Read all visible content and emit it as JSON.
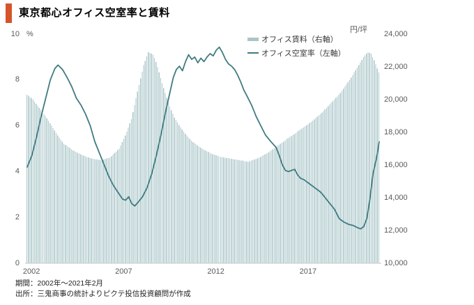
{
  "header": {
    "title": "東京都心オフィス空室率と賃料"
  },
  "footer": {
    "period": "期間：2002年～2021年2月",
    "source": "出所：三鬼商事の統計よりピクテ投信投資顧問が作成"
  },
  "colors": {
    "accent": "#d4552a",
    "bar": "#a9c5c8",
    "line": "#3f7b80",
    "axis_text": "#595959",
    "baseline": "#cfcfcf"
  },
  "chart_data": {
    "type": "combo",
    "title": "東京都心オフィス空室率と賃料",
    "x_start": "2002-01",
    "x_end": "2021-02",
    "n_months": 230,
    "grid": false,
    "legend_position": "top-center",
    "legend": [
      {
        "label": "オフィス賃料（右軸）",
        "type": "bar"
      },
      {
        "label": "オフィス空室率（左軸）",
        "type": "line"
      }
    ],
    "left_axis": {
      "unit": "%",
      "range": [
        0,
        10
      ],
      "ticks": [
        {
          "label": "10",
          "value": 10
        },
        {
          "label": "8",
          "value": 8
        },
        {
          "label": "6",
          "value": 6
        },
        {
          "label": "4",
          "value": 4
        },
        {
          "label": "2",
          "value": 2
        },
        {
          "label": "0",
          "value": 0
        }
      ]
    },
    "right_axis": {
      "unit": "円/坪",
      "range": [
        10000,
        24000
      ],
      "ticks": [
        {
          "label": "24,000",
          "value": 24000
        },
        {
          "label": "22,000",
          "value": 22000
        },
        {
          "label": "20,000",
          "value": 20000
        },
        {
          "label": "18,000",
          "value": 18000
        },
        {
          "label": "16,000",
          "value": 16000
        },
        {
          "label": "14,000",
          "value": 14000
        },
        {
          "label": "12,000",
          "value": 12000
        },
        {
          "label": "10,000",
          "value": 10000
        }
      ]
    },
    "x_ticks": [
      {
        "label": "2002",
        "year": 2002
      },
      {
        "label": "2007",
        "year": 2007
      },
      {
        "label": "2012",
        "year": 2012
      },
      {
        "label": "2017",
        "year": 2017
      }
    ],
    "notes": "monthly values are linearly interpolated between anchor points [month_index_from_2002-01, value]",
    "series": [
      {
        "name": "オフィス賃料（右軸）",
        "type": "bar",
        "axis": "right",
        "unit": "円/坪",
        "anchors_monthly": [
          [
            0,
            20300
          ],
          [
            4,
            20000
          ],
          [
            8,
            19500
          ],
          [
            12,
            19000
          ],
          [
            16,
            18400
          ],
          [
            20,
            17800
          ],
          [
            24,
            17300
          ],
          [
            30,
            16900
          ],
          [
            36,
            16600
          ],
          [
            42,
            16400
          ],
          [
            48,
            16300
          ],
          [
            54,
            16450
          ],
          [
            60,
            17000
          ],
          [
            64,
            17800
          ],
          [
            68,
            18800
          ],
          [
            72,
            20500
          ],
          [
            76,
            22100
          ],
          [
            79,
            22900
          ],
          [
            82,
            22750
          ],
          [
            84,
            22300
          ],
          [
            88,
            21000
          ],
          [
            92,
            19800
          ],
          [
            96,
            18900
          ],
          [
            100,
            18300
          ],
          [
            104,
            17800
          ],
          [
            108,
            17400
          ],
          [
            114,
            17000
          ],
          [
            120,
            16700
          ],
          [
            126,
            16500
          ],
          [
            132,
            16400
          ],
          [
            138,
            16300
          ],
          [
            144,
            16200
          ],
          [
            150,
            16400
          ],
          [
            156,
            16700
          ],
          [
            162,
            17100
          ],
          [
            168,
            17500
          ],
          [
            174,
            17900
          ],
          [
            180,
            18300
          ],
          [
            186,
            18700
          ],
          [
            192,
            19200
          ],
          [
            198,
            19800
          ],
          [
            204,
            20400
          ],
          [
            210,
            21200
          ],
          [
            216,
            22100
          ],
          [
            219,
            22600
          ],
          [
            222,
            22900
          ],
          [
            224,
            22800
          ],
          [
            226,
            22400
          ],
          [
            227,
            22150
          ],
          [
            228,
            21900
          ],
          [
            229,
            21650
          ]
        ]
      },
      {
        "name": "オフィス空室率（左軸）",
        "type": "line",
        "axis": "left",
        "unit": "%",
        "anchors_monthly": [
          [
            0,
            4.2
          ],
          [
            3,
            4.7
          ],
          [
            6,
            5.5
          ],
          [
            9,
            6.4
          ],
          [
            12,
            7.2
          ],
          [
            15,
            8.0
          ],
          [
            18,
            8.5
          ],
          [
            20,
            8.65
          ],
          [
            23,
            8.45
          ],
          [
            26,
            8.1
          ],
          [
            29,
            7.7
          ],
          [
            32,
            7.2
          ],
          [
            35,
            6.9
          ],
          [
            38,
            6.5
          ],
          [
            41,
            6.0
          ],
          [
            44,
            5.3
          ],
          [
            47,
            4.8
          ],
          [
            50,
            4.3
          ],
          [
            53,
            3.8
          ],
          [
            56,
            3.4
          ],
          [
            59,
            3.1
          ],
          [
            62,
            2.8
          ],
          [
            64,
            2.75
          ],
          [
            66,
            2.9
          ],
          [
            68,
            2.6
          ],
          [
            70,
            2.5
          ],
          [
            72,
            2.65
          ],
          [
            75,
            2.9
          ],
          [
            78,
            3.3
          ],
          [
            81,
            3.9
          ],
          [
            84,
            4.7
          ],
          [
            87,
            5.6
          ],
          [
            90,
            6.6
          ],
          [
            93,
            7.5
          ],
          [
            95,
            8.1
          ],
          [
            97,
            8.45
          ],
          [
            99,
            8.6
          ],
          [
            101,
            8.4
          ],
          [
            103,
            8.8
          ],
          [
            105,
            9.1
          ],
          [
            107,
            8.9
          ],
          [
            109,
            9.0
          ],
          [
            111,
            8.75
          ],
          [
            113,
            8.95
          ],
          [
            115,
            8.8
          ],
          [
            117,
            9.0
          ],
          [
            119,
            9.15
          ],
          [
            121,
            9.05
          ],
          [
            123,
            9.3
          ],
          [
            125,
            9.43
          ],
          [
            127,
            9.2
          ],
          [
            129,
            8.9
          ],
          [
            131,
            8.7
          ],
          [
            133,
            8.6
          ],
          [
            135,
            8.45
          ],
          [
            137,
            8.2
          ],
          [
            139,
            7.9
          ],
          [
            141,
            7.55
          ],
          [
            143,
            7.3
          ],
          [
            146,
            6.9
          ],
          [
            149,
            6.4
          ],
          [
            152,
            6.0
          ],
          [
            155,
            5.6
          ],
          [
            158,
            5.35
          ],
          [
            160,
            5.2
          ],
          [
            162,
            5.05
          ],
          [
            164,
            4.7
          ],
          [
            166,
            4.3
          ],
          [
            168,
            4.05
          ],
          [
            170,
            4.0
          ],
          [
            172,
            4.05
          ],
          [
            174,
            4.1
          ],
          [
            176,
            3.85
          ],
          [
            178,
            3.7
          ],
          [
            180,
            3.65
          ],
          [
            183,
            3.5
          ],
          [
            186,
            3.35
          ],
          [
            189,
            3.2
          ],
          [
            191,
            3.1
          ],
          [
            194,
            2.85
          ],
          [
            197,
            2.6
          ],
          [
            200,
            2.35
          ],
          [
            203,
            1.95
          ],
          [
            206,
            1.8
          ],
          [
            209,
            1.7
          ],
          [
            212,
            1.65
          ],
          [
            215,
            1.55
          ],
          [
            217,
            1.5
          ],
          [
            219,
            1.6
          ],
          [
            221,
            1.95
          ],
          [
            223,
            2.8
          ],
          [
            225,
            3.9
          ],
          [
            227,
            4.5
          ],
          [
            228,
            4.85
          ],
          [
            229,
            5.3
          ]
        ]
      }
    ]
  }
}
